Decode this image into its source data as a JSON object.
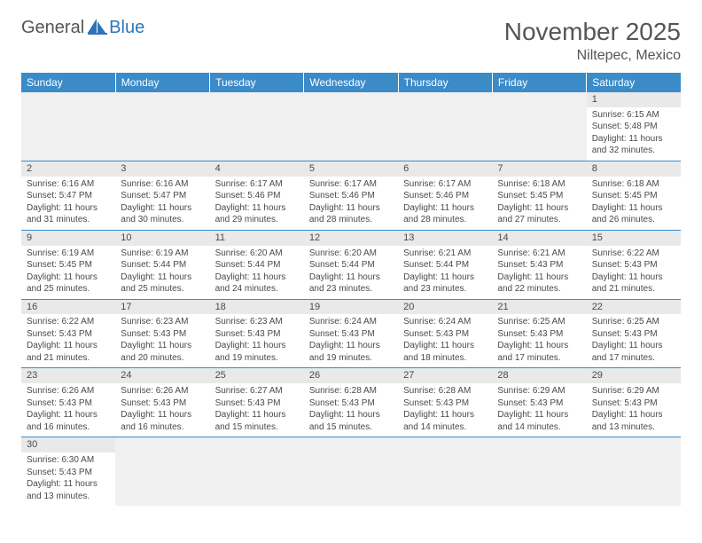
{
  "logo": {
    "part1": "General",
    "part2": "Blue"
  },
  "title": "November 2025",
  "location": "Niltepec, Mexico",
  "colors": {
    "header_bg": "#3b8bc9",
    "header_fg": "#ffffff",
    "daynum_bg": "#e9e9e9",
    "blank_bg": "#f0f0f0",
    "rule": "#3b8bc9",
    "text": "#4a4a4a",
    "logo_gray": "#555555",
    "logo_blue": "#2e74b5"
  },
  "weekdays": [
    "Sunday",
    "Monday",
    "Tuesday",
    "Wednesday",
    "Thursday",
    "Friday",
    "Saturday"
  ],
  "weeks": [
    [
      null,
      null,
      null,
      null,
      null,
      null,
      {
        "n": 1,
        "sunrise": "6:15 AM",
        "sunset": "5:48 PM",
        "dl_h": 11,
        "dl_m": 32
      }
    ],
    [
      {
        "n": 2,
        "sunrise": "6:16 AM",
        "sunset": "5:47 PM",
        "dl_h": 11,
        "dl_m": 31
      },
      {
        "n": 3,
        "sunrise": "6:16 AM",
        "sunset": "5:47 PM",
        "dl_h": 11,
        "dl_m": 30
      },
      {
        "n": 4,
        "sunrise": "6:17 AM",
        "sunset": "5:46 PM",
        "dl_h": 11,
        "dl_m": 29
      },
      {
        "n": 5,
        "sunrise": "6:17 AM",
        "sunset": "5:46 PM",
        "dl_h": 11,
        "dl_m": 28
      },
      {
        "n": 6,
        "sunrise": "6:17 AM",
        "sunset": "5:46 PM",
        "dl_h": 11,
        "dl_m": 28
      },
      {
        "n": 7,
        "sunrise": "6:18 AM",
        "sunset": "5:45 PM",
        "dl_h": 11,
        "dl_m": 27
      },
      {
        "n": 8,
        "sunrise": "6:18 AM",
        "sunset": "5:45 PM",
        "dl_h": 11,
        "dl_m": 26
      }
    ],
    [
      {
        "n": 9,
        "sunrise": "6:19 AM",
        "sunset": "5:45 PM",
        "dl_h": 11,
        "dl_m": 25
      },
      {
        "n": 10,
        "sunrise": "6:19 AM",
        "sunset": "5:44 PM",
        "dl_h": 11,
        "dl_m": 25
      },
      {
        "n": 11,
        "sunrise": "6:20 AM",
        "sunset": "5:44 PM",
        "dl_h": 11,
        "dl_m": 24
      },
      {
        "n": 12,
        "sunrise": "6:20 AM",
        "sunset": "5:44 PM",
        "dl_h": 11,
        "dl_m": 23
      },
      {
        "n": 13,
        "sunrise": "6:21 AM",
        "sunset": "5:44 PM",
        "dl_h": 11,
        "dl_m": 23
      },
      {
        "n": 14,
        "sunrise": "6:21 AM",
        "sunset": "5:43 PM",
        "dl_h": 11,
        "dl_m": 22
      },
      {
        "n": 15,
        "sunrise": "6:22 AM",
        "sunset": "5:43 PM",
        "dl_h": 11,
        "dl_m": 21
      }
    ],
    [
      {
        "n": 16,
        "sunrise": "6:22 AM",
        "sunset": "5:43 PM",
        "dl_h": 11,
        "dl_m": 21
      },
      {
        "n": 17,
        "sunrise": "6:23 AM",
        "sunset": "5:43 PM",
        "dl_h": 11,
        "dl_m": 20
      },
      {
        "n": 18,
        "sunrise": "6:23 AM",
        "sunset": "5:43 PM",
        "dl_h": 11,
        "dl_m": 19
      },
      {
        "n": 19,
        "sunrise": "6:24 AM",
        "sunset": "5:43 PM",
        "dl_h": 11,
        "dl_m": 19
      },
      {
        "n": 20,
        "sunrise": "6:24 AM",
        "sunset": "5:43 PM",
        "dl_h": 11,
        "dl_m": 18
      },
      {
        "n": 21,
        "sunrise": "6:25 AM",
        "sunset": "5:43 PM",
        "dl_h": 11,
        "dl_m": 17
      },
      {
        "n": 22,
        "sunrise": "6:25 AM",
        "sunset": "5:43 PM",
        "dl_h": 11,
        "dl_m": 17
      }
    ],
    [
      {
        "n": 23,
        "sunrise": "6:26 AM",
        "sunset": "5:43 PM",
        "dl_h": 11,
        "dl_m": 16
      },
      {
        "n": 24,
        "sunrise": "6:26 AM",
        "sunset": "5:43 PM",
        "dl_h": 11,
        "dl_m": 16
      },
      {
        "n": 25,
        "sunrise": "6:27 AM",
        "sunset": "5:43 PM",
        "dl_h": 11,
        "dl_m": 15
      },
      {
        "n": 26,
        "sunrise": "6:28 AM",
        "sunset": "5:43 PM",
        "dl_h": 11,
        "dl_m": 15
      },
      {
        "n": 27,
        "sunrise": "6:28 AM",
        "sunset": "5:43 PM",
        "dl_h": 11,
        "dl_m": 14
      },
      {
        "n": 28,
        "sunrise": "6:29 AM",
        "sunset": "5:43 PM",
        "dl_h": 11,
        "dl_m": 14
      },
      {
        "n": 29,
        "sunrise": "6:29 AM",
        "sunset": "5:43 PM",
        "dl_h": 11,
        "dl_m": 13
      }
    ],
    [
      {
        "n": 30,
        "sunrise": "6:30 AM",
        "sunset": "5:43 PM",
        "dl_h": 11,
        "dl_m": 13
      },
      null,
      null,
      null,
      null,
      null,
      null
    ]
  ],
  "labels": {
    "sunrise": "Sunrise:",
    "sunset": "Sunset:",
    "daylight": "Daylight:",
    "hours": "hours",
    "and": "and",
    "minutes": "minutes."
  }
}
